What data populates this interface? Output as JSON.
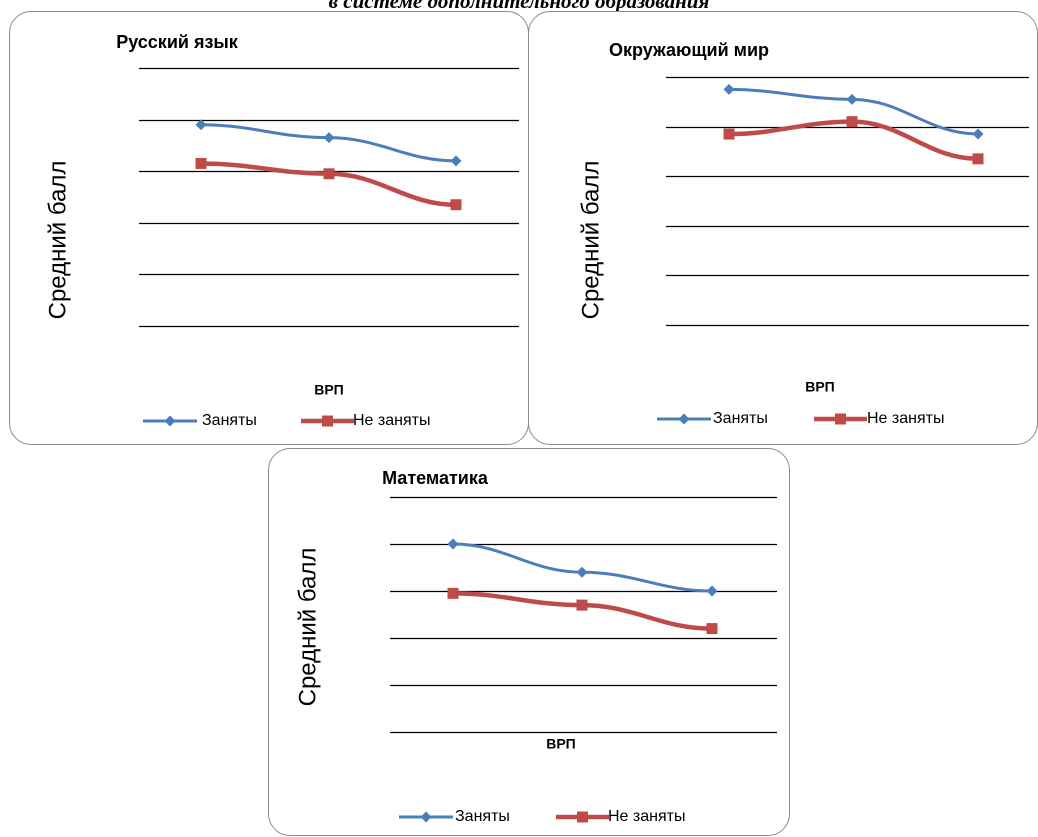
{
  "page": {
    "top_caption": "в системе дополнительного образования"
  },
  "colors": {
    "series_1": "#4a7ebb",
    "series_2": "#be4b48",
    "grid": "#000000",
    "border": "#8c8c8c"
  },
  "chart_data": [
    {
      "type": "line",
      "title": "Русский язык",
      "xlabel": "ВРП",
      "ylabel": "Средний балл",
      "categories": [
        "",
        "",
        ""
      ],
      "ylim": [
        0,
        5
      ],
      "yticks": [
        0,
        1,
        2,
        3,
        4,
        5
      ],
      "grid": true,
      "legend_position": "bottom",
      "series": [
        {
          "name": "Заняты",
          "color": "#4a7ebb",
          "marker": "diamond",
          "values": [
            3.9,
            3.65,
            3.2
          ]
        },
        {
          "name": "Не заняты",
          "color": "#be4b48",
          "marker": "square",
          "values": [
            3.15,
            2.95,
            2.35
          ]
        }
      ]
    },
    {
      "type": "line",
      "title": "Окружающий мир",
      "xlabel": "ВРП",
      "ylabel": "Средний балл",
      "categories": [
        "",
        "",
        ""
      ],
      "ylim": [
        0,
        5
      ],
      "yticks": [
        0,
        1,
        2,
        3,
        4,
        5
      ],
      "grid": true,
      "legend_position": "bottom",
      "series": [
        {
          "name": "Заняты",
          "color": "#4a7ebb",
          "marker": "diamond",
          "values": [
            4.75,
            4.55,
            3.85
          ]
        },
        {
          "name": "Не заняты",
          "color": "#be4b48",
          "marker": "square",
          "values": [
            3.85,
            4.1,
            3.35
          ]
        }
      ]
    },
    {
      "type": "line",
      "title": "Математика",
      "xlabel": "ВРП",
      "ylabel": "Средний балл",
      "categories": [
        "",
        "",
        ""
      ],
      "ylim": [
        0,
        5
      ],
      "yticks": [
        0,
        1,
        2,
        3,
        4,
        5
      ],
      "grid": true,
      "legend_position": "bottom",
      "series": [
        {
          "name": "Заняты",
          "color": "#4a7ebb",
          "marker": "diamond",
          "values": [
            4.0,
            3.4,
            3.0
          ]
        },
        {
          "name": "Не заняты",
          "color": "#be4b48",
          "marker": "square",
          "values": [
            2.95,
            2.7,
            2.2
          ]
        }
      ]
    }
  ]
}
